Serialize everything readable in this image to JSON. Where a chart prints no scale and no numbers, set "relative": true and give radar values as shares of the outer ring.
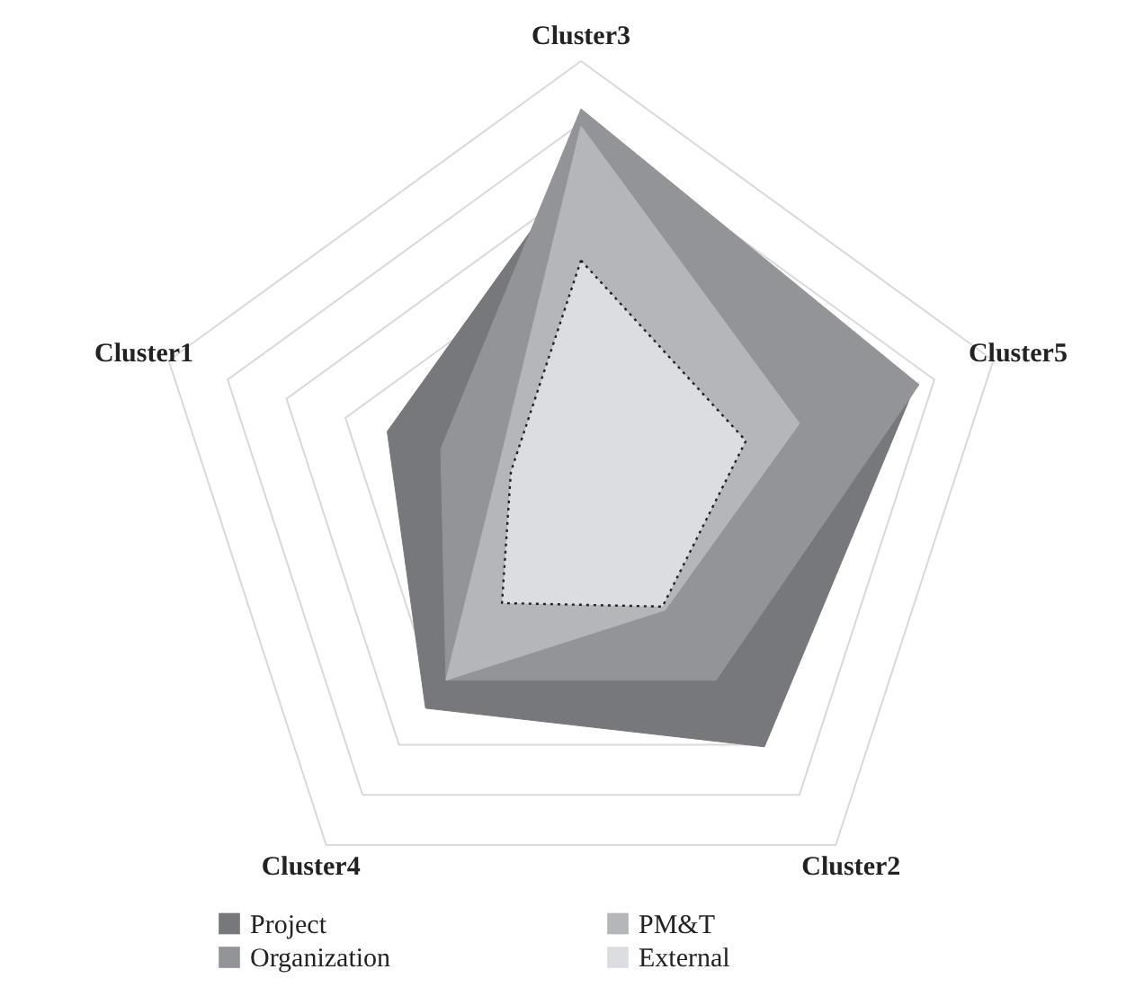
{
  "chart_data": {
    "type": "radar",
    "relative": true,
    "categories": [
      "Cluster3",
      "Cluster5",
      "Cluster2",
      "Cluster4",
      "Cluster1"
    ],
    "series": [
      {
        "name": "Project",
        "color": "#77787b",
        "values": [
          0.77,
          0.81,
          0.72,
          0.61,
          0.47
        ]
      },
      {
        "name": "Organization",
        "color": "#939497",
        "values": [
          0.89,
          0.82,
          0.53,
          0.53,
          0.34
        ]
      },
      {
        "name": "PM&T",
        "color": "#b5b6b9",
        "values": [
          0.85,
          0.53,
          0.33,
          0.53,
          0.2
        ]
      },
      {
        "name": "External",
        "color": "#dcdde0",
        "values": [
          0.54,
          0.4,
          0.32,
          0.31,
          0.17
        ],
        "line_style": "dotted"
      }
    ],
    "grid": true,
    "legend": "bottom"
  }
}
